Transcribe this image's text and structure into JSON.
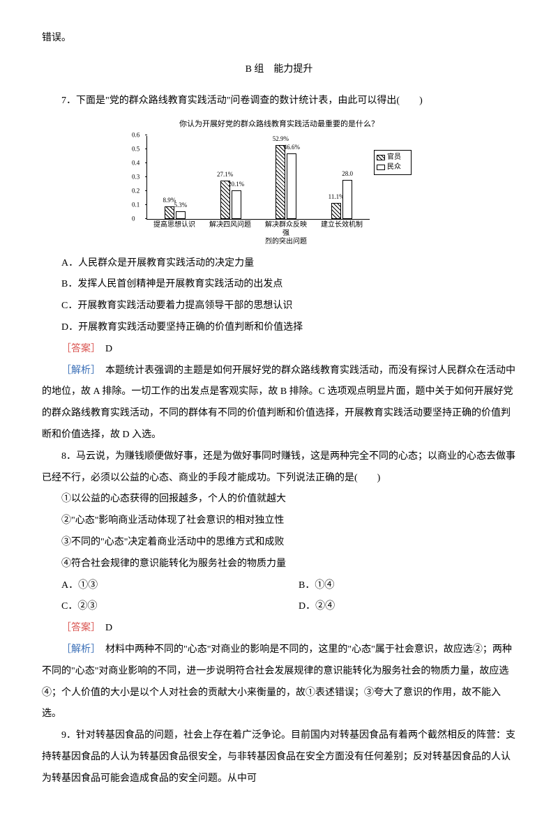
{
  "intro_tail": "错误。",
  "section_header": "B 组　能力提升",
  "q7": {
    "stem": "7．下面是\"党的群众路线教育实践活动\"问卷调查的数计统计表，由此可以得出(　　)",
    "chart": {
      "type": "bar",
      "title": "你认为开展好党的群众路线教育实践活动最重要的是什么？",
      "categories": [
        "提高思想认识",
        "解决四风问题",
        "解决群众反映强\n烈的突出问题",
        "建立长效机制"
      ],
      "series": [
        {
          "name": "官员",
          "pattern": "hatch",
          "values": [
            8.9,
            27.1,
            52.9,
            11.1
          ]
        },
        {
          "name": "民众",
          "pattern": "solid",
          "values": [
            5.3,
            20.1,
            46.6,
            28.0
          ]
        }
      ],
      "value_labels": [
        [
          "8.9%",
          "5.3%"
        ],
        [
          "27.1%",
          "20.1%"
        ],
        [
          "52.9%",
          "46.6%"
        ],
        [
          "11.1%",
          "28.0"
        ]
      ],
      "ylim": [
        0,
        0.6
      ],
      "yticks": [
        0,
        0.1,
        0.2,
        0.3,
        0.4,
        0.5,
        0.6
      ],
      "colors": {
        "border": "#000000",
        "bg": "#ffffff"
      },
      "legend_labels": [
        "官员",
        "民众"
      ]
    },
    "options": {
      "A": "A．人民群众是开展教育实践活动的决定力量",
      "B": "B．发挥人民首创精神是开展教育实践活动的出发点",
      "C": "C．开展教育实践活动要着力提高领导干部的思想认识",
      "D": "D．开展教育实践活动要坚持正确的价值判断和价值选择"
    },
    "answer_label": "［答案］",
    "answer": "D",
    "analysis_label": "［解析］",
    "analysis": "本题统计表强调的主题是如何开展好党的群众路线教育实践活动，而没有探讨人民群众在活动中的地位，故 A 排除。一切工作的出发点是客观实际，故 B 排除。C 选项观点明显片面，题中关于如何开展好党的群众路线教育实践活动，不同的群体有不同的价值判断和价值选择，开展教育实践活动要坚持正确的价值判断和价值选择，故 D 入选。"
  },
  "q8": {
    "stem": "8．马云说，为赚钱顺便做好事，还是为做好事同时赚钱，这是两种完全不同的心态；以商业的心态去做事已经不行，必须以公益的心态、商业的手段才能成功。下列说法正确的是(　　)",
    "items": {
      "i1": "①以公益的心态获得的回报越多，个人的价值就越大",
      "i2": "②\"心态\"影响商业活动体现了社会意识的相对独立性",
      "i3": "③不同的\"心态\"决定着商业活动中的思维方式和成败",
      "i4": "④符合社会规律的意识能转化为服务社会的物质力量"
    },
    "options": {
      "A": "A．①③",
      "B": "B．①④",
      "C": "C．②③",
      "D": "D．②④"
    },
    "answer_label": "［答案］",
    "answer": "D",
    "analysis_label": "［解析］",
    "analysis": "材料中两种不同的\"心态\"对商业的影响是不同的，这里的\"心态\"属于社会意识，故应选②；两种不同的\"心态\"对商业影响的不同，进一步说明符合社会发展规律的意识能转化为服务社会的物质力量，故应选④；个人价值的大小是以个人对社会的贡献大小来衡量的，故①表述错误；③夸大了意识的作用，故不能入选。"
  },
  "q9": {
    "stem": "9．针对转基因食品的问题，社会上存在着广泛争论。目前国内对转基因食品有着两个截然相反的阵营：支持转基因食品的人认为转基因食品很安全，与非转基因食品在安全方面没有任何差别；反对转基因食品的人认为转基因食品可能会造成食品的安全问题。从中可"
  }
}
